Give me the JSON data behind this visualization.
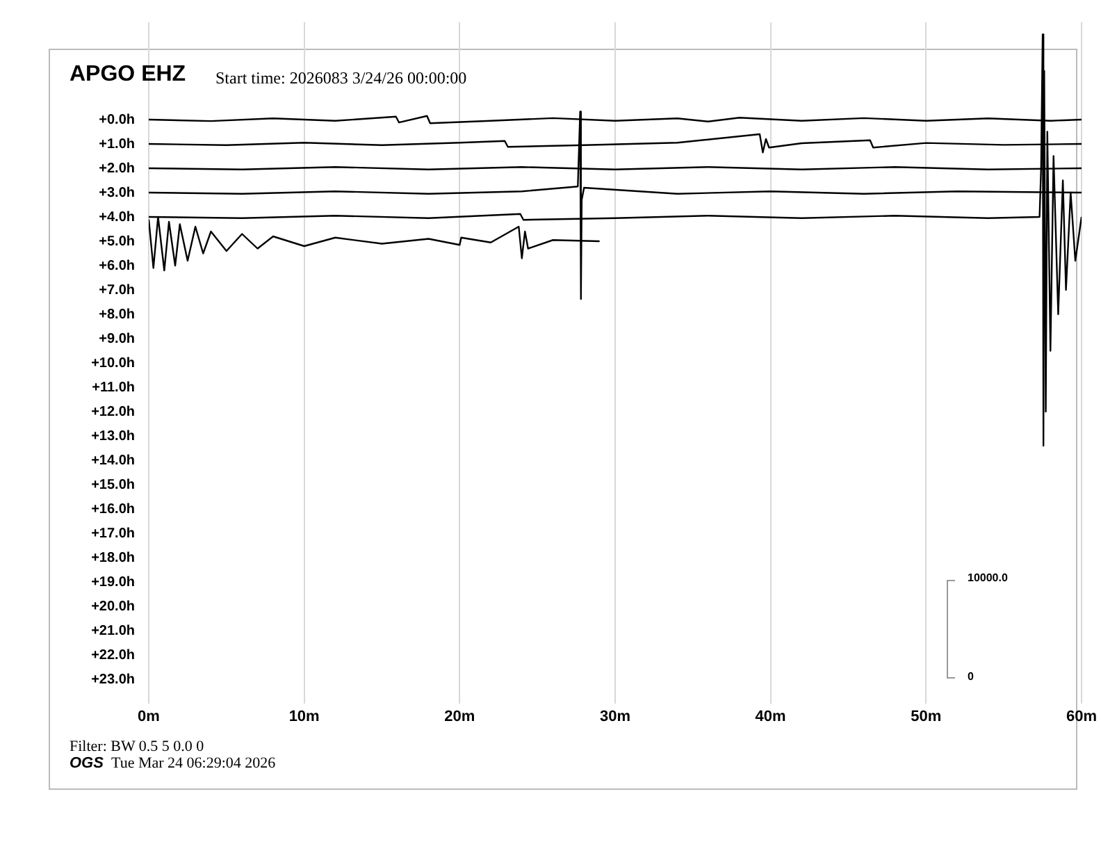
{
  "chart_data": {
    "type": "line",
    "title": "APGO EHZ",
    "subtitle": "Start time: 2026083  3/24/26 00:00:00",
    "annotations": [
      "Filter: BW 0.5 5 0.0 0",
      "OGS",
      "Tue Mar 24 06:29:04 2026",
      "10000.0",
      "0"
    ],
    "xlim": [
      0,
      60
    ],
    "xticks": [
      {
        "value": 0,
        "label": "0m"
      },
      {
        "value": 10,
        "label": "10m"
      },
      {
        "value": 20,
        "label": "20m"
      },
      {
        "value": 30,
        "label": "30m"
      },
      {
        "value": 40,
        "label": "40m"
      },
      {
        "value": 50,
        "label": "50m"
      },
      {
        "value": 60,
        "label": "60m"
      }
    ],
    "ylim": [
      24,
      -4
    ],
    "yticks": [
      {
        "value": 0,
        "label": "+0.0h"
      },
      {
        "value": 1,
        "label": "+1.0h"
      },
      {
        "value": 2,
        "label": "+2.0h"
      },
      {
        "value": 3,
        "label": "+3.0h"
      },
      {
        "value": 4,
        "label": "+4.0h"
      },
      {
        "value": 5,
        "label": "+5.0h"
      },
      {
        "value": 6,
        "label": "+6.0h"
      },
      {
        "value": 7,
        "label": "+7.0h"
      },
      {
        "value": 8,
        "label": "+8.0h"
      },
      {
        "value": 9,
        "label": "+9.0h"
      },
      {
        "value": 10,
        "label": "+10.0h"
      },
      {
        "value": 11,
        "label": "+11.0h"
      },
      {
        "value": 12,
        "label": "+12.0h"
      },
      {
        "value": 13,
        "label": "+13.0h"
      },
      {
        "value": 14,
        "label": "+14.0h"
      },
      {
        "value": 15,
        "label": "+15.0h"
      },
      {
        "value": 16,
        "label": "+16.0h"
      },
      {
        "value": 17,
        "label": "+17.0h"
      },
      {
        "value": 18,
        "label": "+18.0h"
      },
      {
        "value": 19,
        "label": "+19.0h"
      },
      {
        "value": 20,
        "label": "+20.0h"
      },
      {
        "value": 21,
        "label": "+21.0h"
      },
      {
        "value": 22,
        "label": "+22.0h"
      },
      {
        "value": 23,
        "label": "+23.0h"
      }
    ],
    "grid": "x",
    "legend": false,
    "marker": "none",
    "line_style": "solid",
    "series": [
      {
        "color": "#000000",
        "x": [
          0,
          4,
          8,
          12,
          15.9,
          16.1,
          17.9,
          18.1,
          22,
          26,
          30,
          34,
          36,
          38,
          42,
          46,
          50,
          54,
          58,
          60
        ],
        "values": [
          0,
          0.06,
          -0.05,
          0.05,
          -0.12,
          0.12,
          -0.15,
          0.15,
          0.05,
          -0.06,
          0.05,
          -0.05,
          0.08,
          -0.08,
          0.05,
          -0.06,
          0.05,
          -0.05,
          0.05,
          0
        ]
      },
      {
        "color": "#000000",
        "x": [
          0,
          5,
          10,
          15,
          20,
          22.9,
          23.1,
          28,
          34,
          39.3,
          39.5,
          39.7,
          39.9,
          42,
          46.4,
          46.6,
          50,
          55,
          60
        ],
        "values": [
          1,
          1.05,
          0.95,
          1.05,
          0.95,
          0.88,
          1.12,
          1.05,
          0.95,
          0.6,
          1.35,
          0.8,
          1.15,
          0.97,
          0.85,
          1.15,
          0.96,
          1.04,
          1
        ]
      },
      {
        "color": "#000000",
        "x": [
          0,
          6,
          12,
          18,
          24,
          30,
          36,
          42,
          48,
          54,
          60
        ],
        "values": [
          2,
          2.05,
          1.95,
          2.05,
          1.95,
          2.05,
          1.95,
          2.05,
          1.95,
          2.05,
          2
        ]
      },
      {
        "color": "#000000",
        "x": [
          0,
          6,
          12,
          18,
          24,
          27.6,
          27.75,
          27.8,
          27.85,
          28,
          34,
          40,
          46,
          52,
          60
        ],
        "values": [
          3,
          3.05,
          2.95,
          3.05,
          2.95,
          2.75,
          -0.33,
          7.37,
          3.3,
          2.8,
          3.05,
          2.95,
          3.05,
          2.95,
          3
        ]
      },
      {
        "color": "#000000",
        "x": [
          0,
          6,
          12,
          18,
          23.9,
          24.1,
          30,
          36,
          42,
          48,
          54,
          57.3,
          57.4,
          57.5,
          57.55,
          57.6,
          57.7,
          57.8,
          58,
          58.2,
          58.5,
          58.8,
          59,
          59.3,
          59.6,
          60
        ],
        "values": [
          4,
          4.05,
          3.95,
          4.05,
          3.88,
          4.12,
          4.05,
          3.95,
          4.05,
          3.95,
          4.05,
          4,
          2,
          -3.5,
          13.4,
          -2,
          12,
          0.5,
          9.5,
          1.5,
          8,
          2.5,
          7,
          3,
          5.8,
          4
        ]
      },
      {
        "color": "#000000",
        "x": [
          0,
          0.3,
          0.6,
          1,
          1.3,
          1.7,
          2,
          2.5,
          3,
          3.5,
          4,
          5,
          6,
          7,
          8,
          10,
          12,
          15,
          18,
          20,
          20.1,
          22,
          23.8,
          24,
          24.2,
          24.4,
          26,
          29
        ],
        "values": [
          4.1,
          6.1,
          4,
          6.2,
          4.2,
          6,
          4.3,
          5.8,
          4.4,
          5.5,
          4.6,
          5.4,
          4.7,
          5.3,
          4.8,
          5.2,
          4.85,
          5.1,
          4.9,
          5.15,
          4.85,
          5.05,
          4.4,
          5.7,
          4.6,
          5.3,
          4.95,
          5
        ]
      }
    ]
  }
}
